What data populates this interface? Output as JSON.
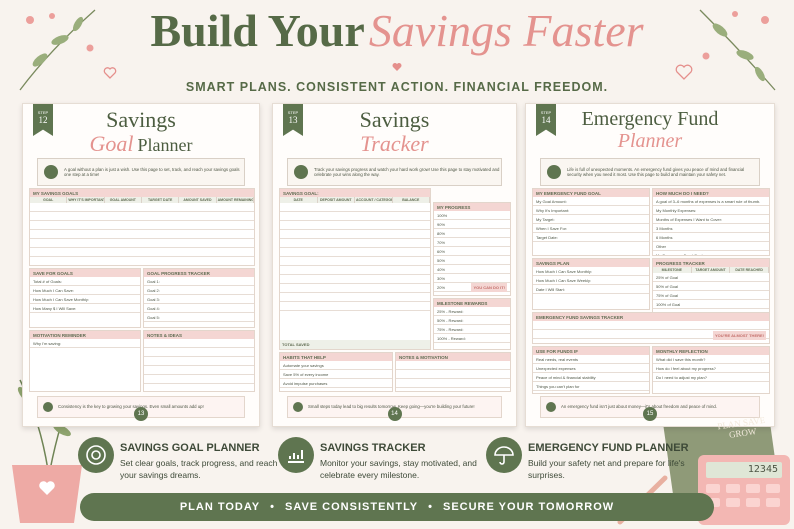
{
  "header": {
    "title_main": "Build Your",
    "title_script": "Savings Faster",
    "tagline": "SMART PLANS. CONSISTENT ACTION. FINANCIAL FREEDOM."
  },
  "pages": [
    {
      "step_label": "STEP",
      "step": "12",
      "title": "Savings",
      "title_script": "Goal",
      "title_end": "Planner",
      "intro": "A goal without a plan is just a wish. Use this page to set, track, and reach your savings goals one step at a time!",
      "sections": [
        {
          "label": "MY SAVINGS GOALS",
          "columns": [
            "GOAL",
            "WHY IT'S IMPORTANT",
            "GOAL AMOUNT",
            "TARGET DATE",
            "AMOUNT SAVED",
            "AMOUNT REMAINING"
          ]
        },
        {
          "label": "SAVE FOR GOALS",
          "rows": [
            "Total # of Goals:",
            "How Much I Can Save:",
            "How Much I Can Save Monthly:",
            "How Many $ I Will Save:"
          ]
        },
        {
          "label": "GOAL PROGRESS TRACKER",
          "rows": [
            "Goal 1:",
            "Goal 2:",
            "Goal 3:",
            "Goal 4:",
            "Goal 5:"
          ]
        },
        {
          "label": "MOTIVATION REMINDER",
          "rows": [
            "Why I'm saving:"
          ]
        },
        {
          "label": "NOTES & IDEAS"
        }
      ],
      "tip": "Consistency is the key to growing your savings. Even small amounts add up!",
      "page_number": "13"
    },
    {
      "step_label": "STEP",
      "step": "13",
      "title": "Savings",
      "title_script": "Tracker",
      "title_end": "",
      "intro": "Track your savings progress and watch your hard work grow! Use this page to stay motivated and celebrate your wins along the way.",
      "sections": [
        {
          "label": "SAVINGS GOAL:",
          "columns": [
            "DATE",
            "DEPOSIT AMOUNT",
            "ACCOUNT / CATEGORY",
            "BALANCE"
          ],
          "footer": "TOTAL SAVED"
        },
        {
          "label": "MY PROGRESS",
          "rows": [
            "100%",
            "90%",
            "80%",
            "70%",
            "60%",
            "50%",
            "40%",
            "30%",
            "20%",
            "10%"
          ],
          "note": "YOU CAN DO IT!"
        },
        {
          "label": "MILESTONE REWARDS",
          "rows": [
            "25% - Reward:",
            "50% - Reward:",
            "75% - Reward:",
            "100% - Reward:"
          ]
        },
        {
          "label": "HABITS THAT HELP",
          "rows": [
            "Automate your savings",
            "Save 5% of every income",
            "Avoid impulse purchases",
            "Review & adjust your goals"
          ]
        },
        {
          "label": "NOTES & MOTIVATION"
        }
      ],
      "tip": "Small steps today lead to big results tomorrow. Keep going—you're building your future!",
      "page_number": "14"
    },
    {
      "step_label": "STEP",
      "step": "14",
      "title": "Emergency Fund",
      "title_script": "Planner",
      "title_end": "",
      "intro": "Life is full of unexpected moments. An emergency fund gives you peace of mind and financial security when you need it most. Use this page to build and maintain your safety net.",
      "sections": [
        {
          "label": "MY EMERGENCY FUND GOAL",
          "rows": [
            "My Goal Amount:",
            "Why It's Important:",
            "My Target:",
            "When I Save For:",
            "Target Date:"
          ]
        },
        {
          "label": "HOW MUCH DO I NEED?",
          "rows": [
            "A goal of 3–6 months of expenses is a smart rule of thumb.",
            "My Monthly Expenses:",
            "Months of Expenses I Want to Cover:",
            "3 Months",
            "6 Months",
            "Other",
            "My Emergency Fund Goal:"
          ]
        },
        {
          "label": "SAVINGS PLAN",
          "rows": [
            "How Much I Can Save Monthly:",
            "How Much I Can Save Weekly:",
            "Date I Will Start:"
          ]
        },
        {
          "label": "PROGRESS TRACKER",
          "columns": [
            "MILESTONE",
            "TARGET AMOUNT",
            "DATE REACHED"
          ],
          "rows": [
            "25% of Goal",
            "50% of Goal",
            "75% of Goal",
            "100% of Goal"
          ]
        },
        {
          "label": "EMERGENCY FUND SAVINGS TRACKER",
          "note": "YOU'RE ALMOST THERE!"
        },
        {
          "label": "USE FOR FUNDS IF",
          "rows": [
            "Real needs, real events",
            "Unexpected expenses",
            "Peace of mind & financial stability",
            "Things you can't plan for"
          ]
        },
        {
          "label": "MONTHLY REFLECTION",
          "rows": [
            "What did I save this month?",
            "How do I feel about my progress?",
            "Do I need to adjust my plan?"
          ]
        }
      ],
      "tip": "An emergency fund isn't just about money—it's about freedom and peace of mind.",
      "page_number": "15"
    }
  ],
  "features": [
    {
      "title": "SAVINGS GOAL PLANNER",
      "text": "Set clear goals, track progress, and reach your savings dreams."
    },
    {
      "title": "SAVINGS TRACKER",
      "text": "Monitor your savings, stay motivated, and celebrate every milestone."
    },
    {
      "title": "EMERGENCY FUND PLANNER",
      "text": "Build your safety net and prepare for life's surprises."
    }
  ],
  "footer": {
    "items": [
      "PLAN TODAY",
      "SAVE CONSISTENTLY",
      "SECURE YOUR TOMORROW"
    ],
    "separator": "•"
  },
  "props": {
    "notebook": "PLAN SAVE GROW",
    "calculator": "12345"
  }
}
